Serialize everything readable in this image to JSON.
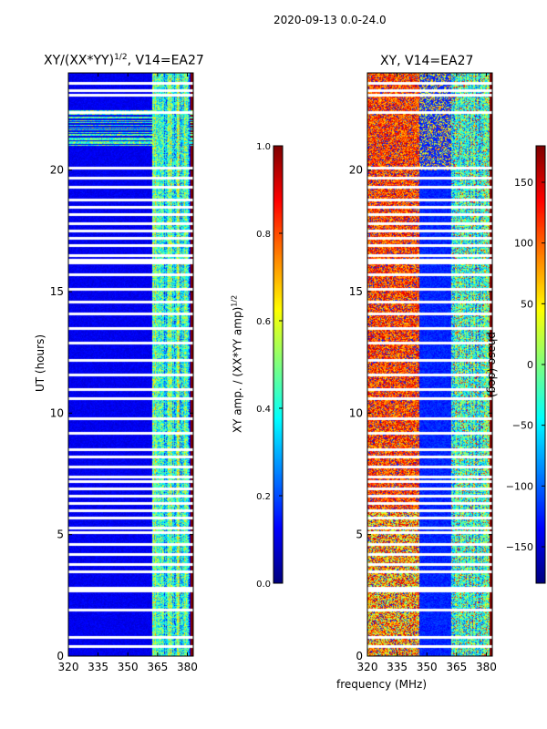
{
  "chart_data": [
    {
      "type": "heatmap",
      "suptitle": "2020-09-13 0.0-24.0",
      "title": "XY/(XX*YY)^1/2, V14=EA27",
      "title_base": "XY/(XX*YY)",
      "title_sup": "1/2",
      "title_rest": ", V14=EA27",
      "xlabel": "frequency (MHz)",
      "ylabel": "UT (hours)",
      "xlim": [
        320,
        383
      ],
      "ylim": [
        0,
        24
      ],
      "xticks": [
        "320",
        "335",
        "350",
        "365",
        "380"
      ],
      "xtick_values": [
        320,
        335,
        350,
        365,
        380
      ],
      "yticks": [
        "0",
        "5",
        "10",
        "15",
        "20"
      ],
      "ytick_values": [
        0,
        5,
        10,
        15,
        20
      ],
      "colormap": "jet",
      "colorbar": {
        "label": "XY amp. / (XX*YY amp)^1/2",
        "label_base": "XY amp. / (XX*YY amp)",
        "label_sup": "1/2",
        "range": [
          0,
          1
        ],
        "ticks": [
          "0.0",
          "0.2",
          "0.4",
          "0.6",
          "0.8",
          "1.0"
        ],
        "tick_values": [
          0,
          0.2,
          0.4,
          0.6,
          0.8,
          1.0
        ]
      },
      "description_values": {
        "background_amp": 0.05,
        "band_365_380_amp": [
          0.3,
          0.6
        ]
      }
    },
    {
      "type": "heatmap",
      "title": "XY, V14=EA27",
      "xlim": [
        320,
        383
      ],
      "ylim": [
        0,
        24
      ],
      "xticks": [
        "320",
        "335",
        "350",
        "365",
        "380"
      ],
      "xtick_values": [
        320,
        335,
        350,
        365,
        380
      ],
      "yticks": [
        "0",
        "5",
        "10",
        "15",
        "20"
      ],
      "ytick_values": [
        0,
        5,
        10,
        15,
        20
      ],
      "colormap": "jet",
      "colorbar": {
        "label": "phase (deg)",
        "range": [
          -180,
          180
        ],
        "ticks": [
          "−150",
          "−100",
          "−50",
          "0",
          "50",
          "100",
          "150"
        ],
        "tick_values": [
          -150,
          -100,
          -50,
          0,
          50,
          100,
          150
        ]
      }
    }
  ],
  "flagged_rows_ut": [
    0.4,
    0.8,
    1.9,
    2.7,
    2.8,
    3.5,
    3.8,
    4.2,
    4.6,
    5.1,
    5.3,
    5.7,
    6.0,
    6.3,
    6.6,
    6.9,
    7.2,
    7.4,
    7.8,
    8.2,
    8.5,
    9.2,
    9.8,
    10.6,
    11.0,
    11.6,
    12.2,
    12.9,
    13.5,
    14.1,
    14.6,
    15.1,
    15.7,
    16.2,
    16.3,
    16.5,
    16.9,
    17.2,
    17.5,
    17.8,
    18.2,
    18.5,
    18.8,
    19.3,
    19.7,
    20.1,
    22.4,
    23.1,
    23.3,
    23.6
  ]
}
